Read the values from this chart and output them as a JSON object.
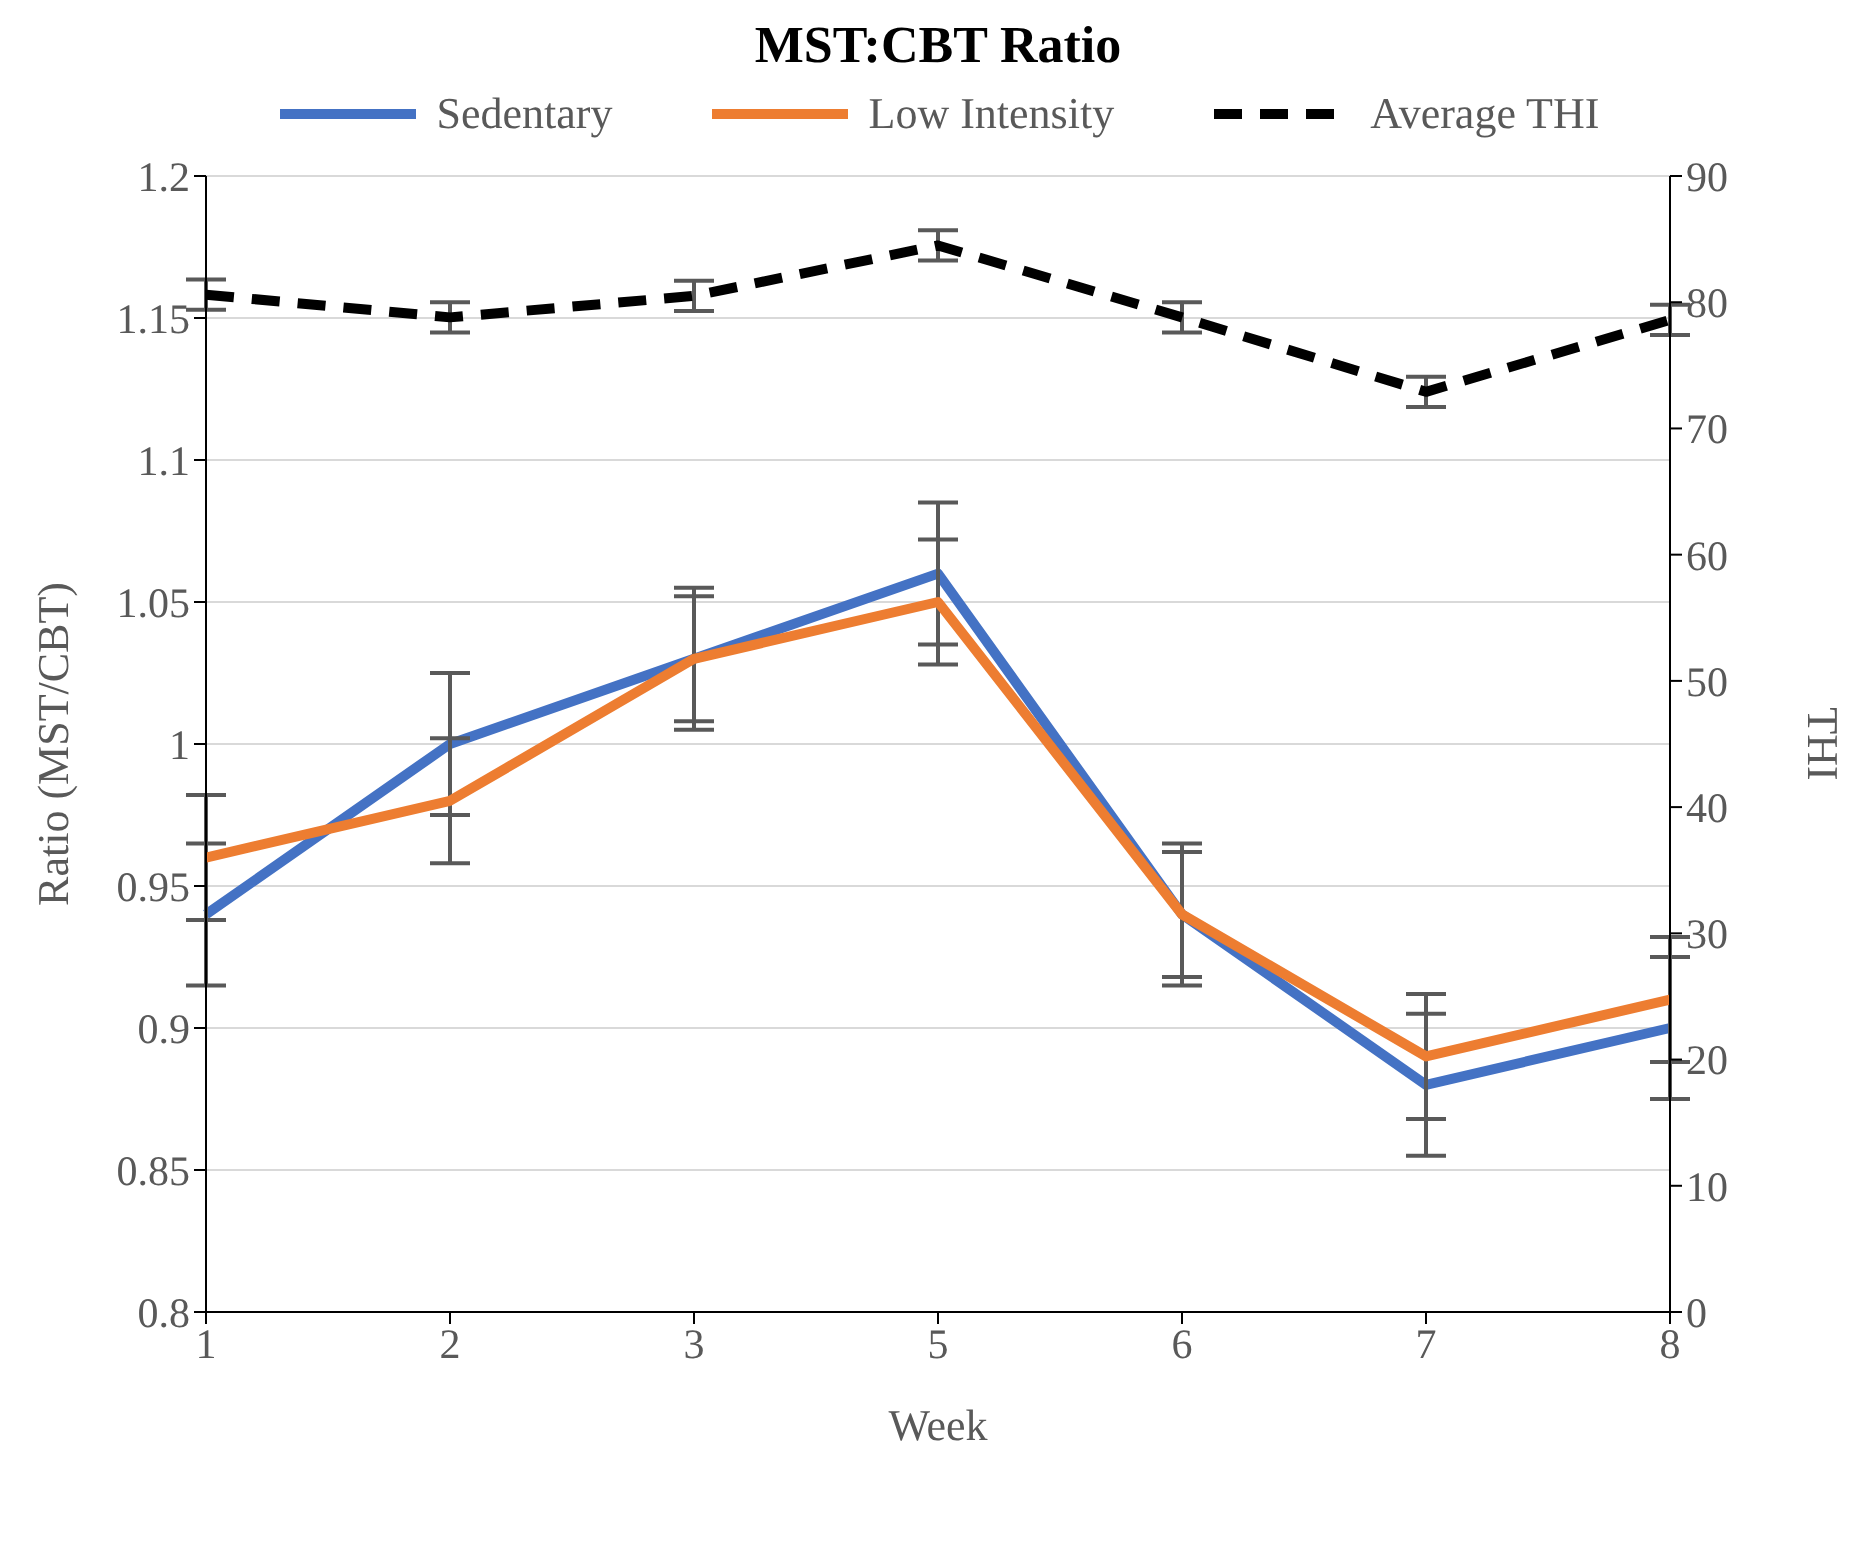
{
  "chart_data": {
    "type": "line",
    "title": "MST:CBT Ratio",
    "xlabel": "Week",
    "ylabel": "Ratio (MST/CBT)",
    "y2label": "THI",
    "categories": [
      "1",
      "2",
      "3",
      "5",
      "6",
      "7",
      "8"
    ],
    "series": [
      {
        "name": "Sedentary",
        "color": "#4472c4",
        "values": [
          0.94,
          1.0,
          1.03,
          1.06,
          0.94,
          0.88,
          0.9
        ],
        "errors": [
          0.025,
          0.025,
          0.025,
          0.025,
          0.025,
          0.025,
          0.025
        ]
      },
      {
        "name": "Low Intensity",
        "color": "#ed7d31",
        "values": [
          0.96,
          0.98,
          1.03,
          1.05,
          0.94,
          0.89,
          0.91
        ],
        "errors": [
          0.022,
          0.022,
          0.022,
          0.022,
          0.022,
          0.022,
          0.022
        ]
      },
      {
        "name": "Average THI",
        "color": "#000000",
        "axis": "y2",
        "line_style": "dashed",
        "values": [
          80.6,
          78.8,
          80.5,
          84.5,
          78.8,
          72.9,
          78.6
        ],
        "errors": [
          1.2,
          1.2,
          1.2,
          1.2,
          1.2,
          1.2,
          1.2
        ]
      }
    ],
    "ylim": [
      0.8,
      1.2
    ],
    "yticks": [
      0.8,
      0.85,
      0.9,
      0.95,
      1,
      1.05,
      1.1,
      1.15,
      1.2
    ],
    "y2lim": [
      0,
      90
    ],
    "y2ticks": [
      0,
      10,
      20,
      30,
      40,
      50,
      60,
      70,
      80,
      90
    ],
    "grid": "y",
    "legend": "top",
    "marker": "none",
    "line_style": "solid"
  }
}
